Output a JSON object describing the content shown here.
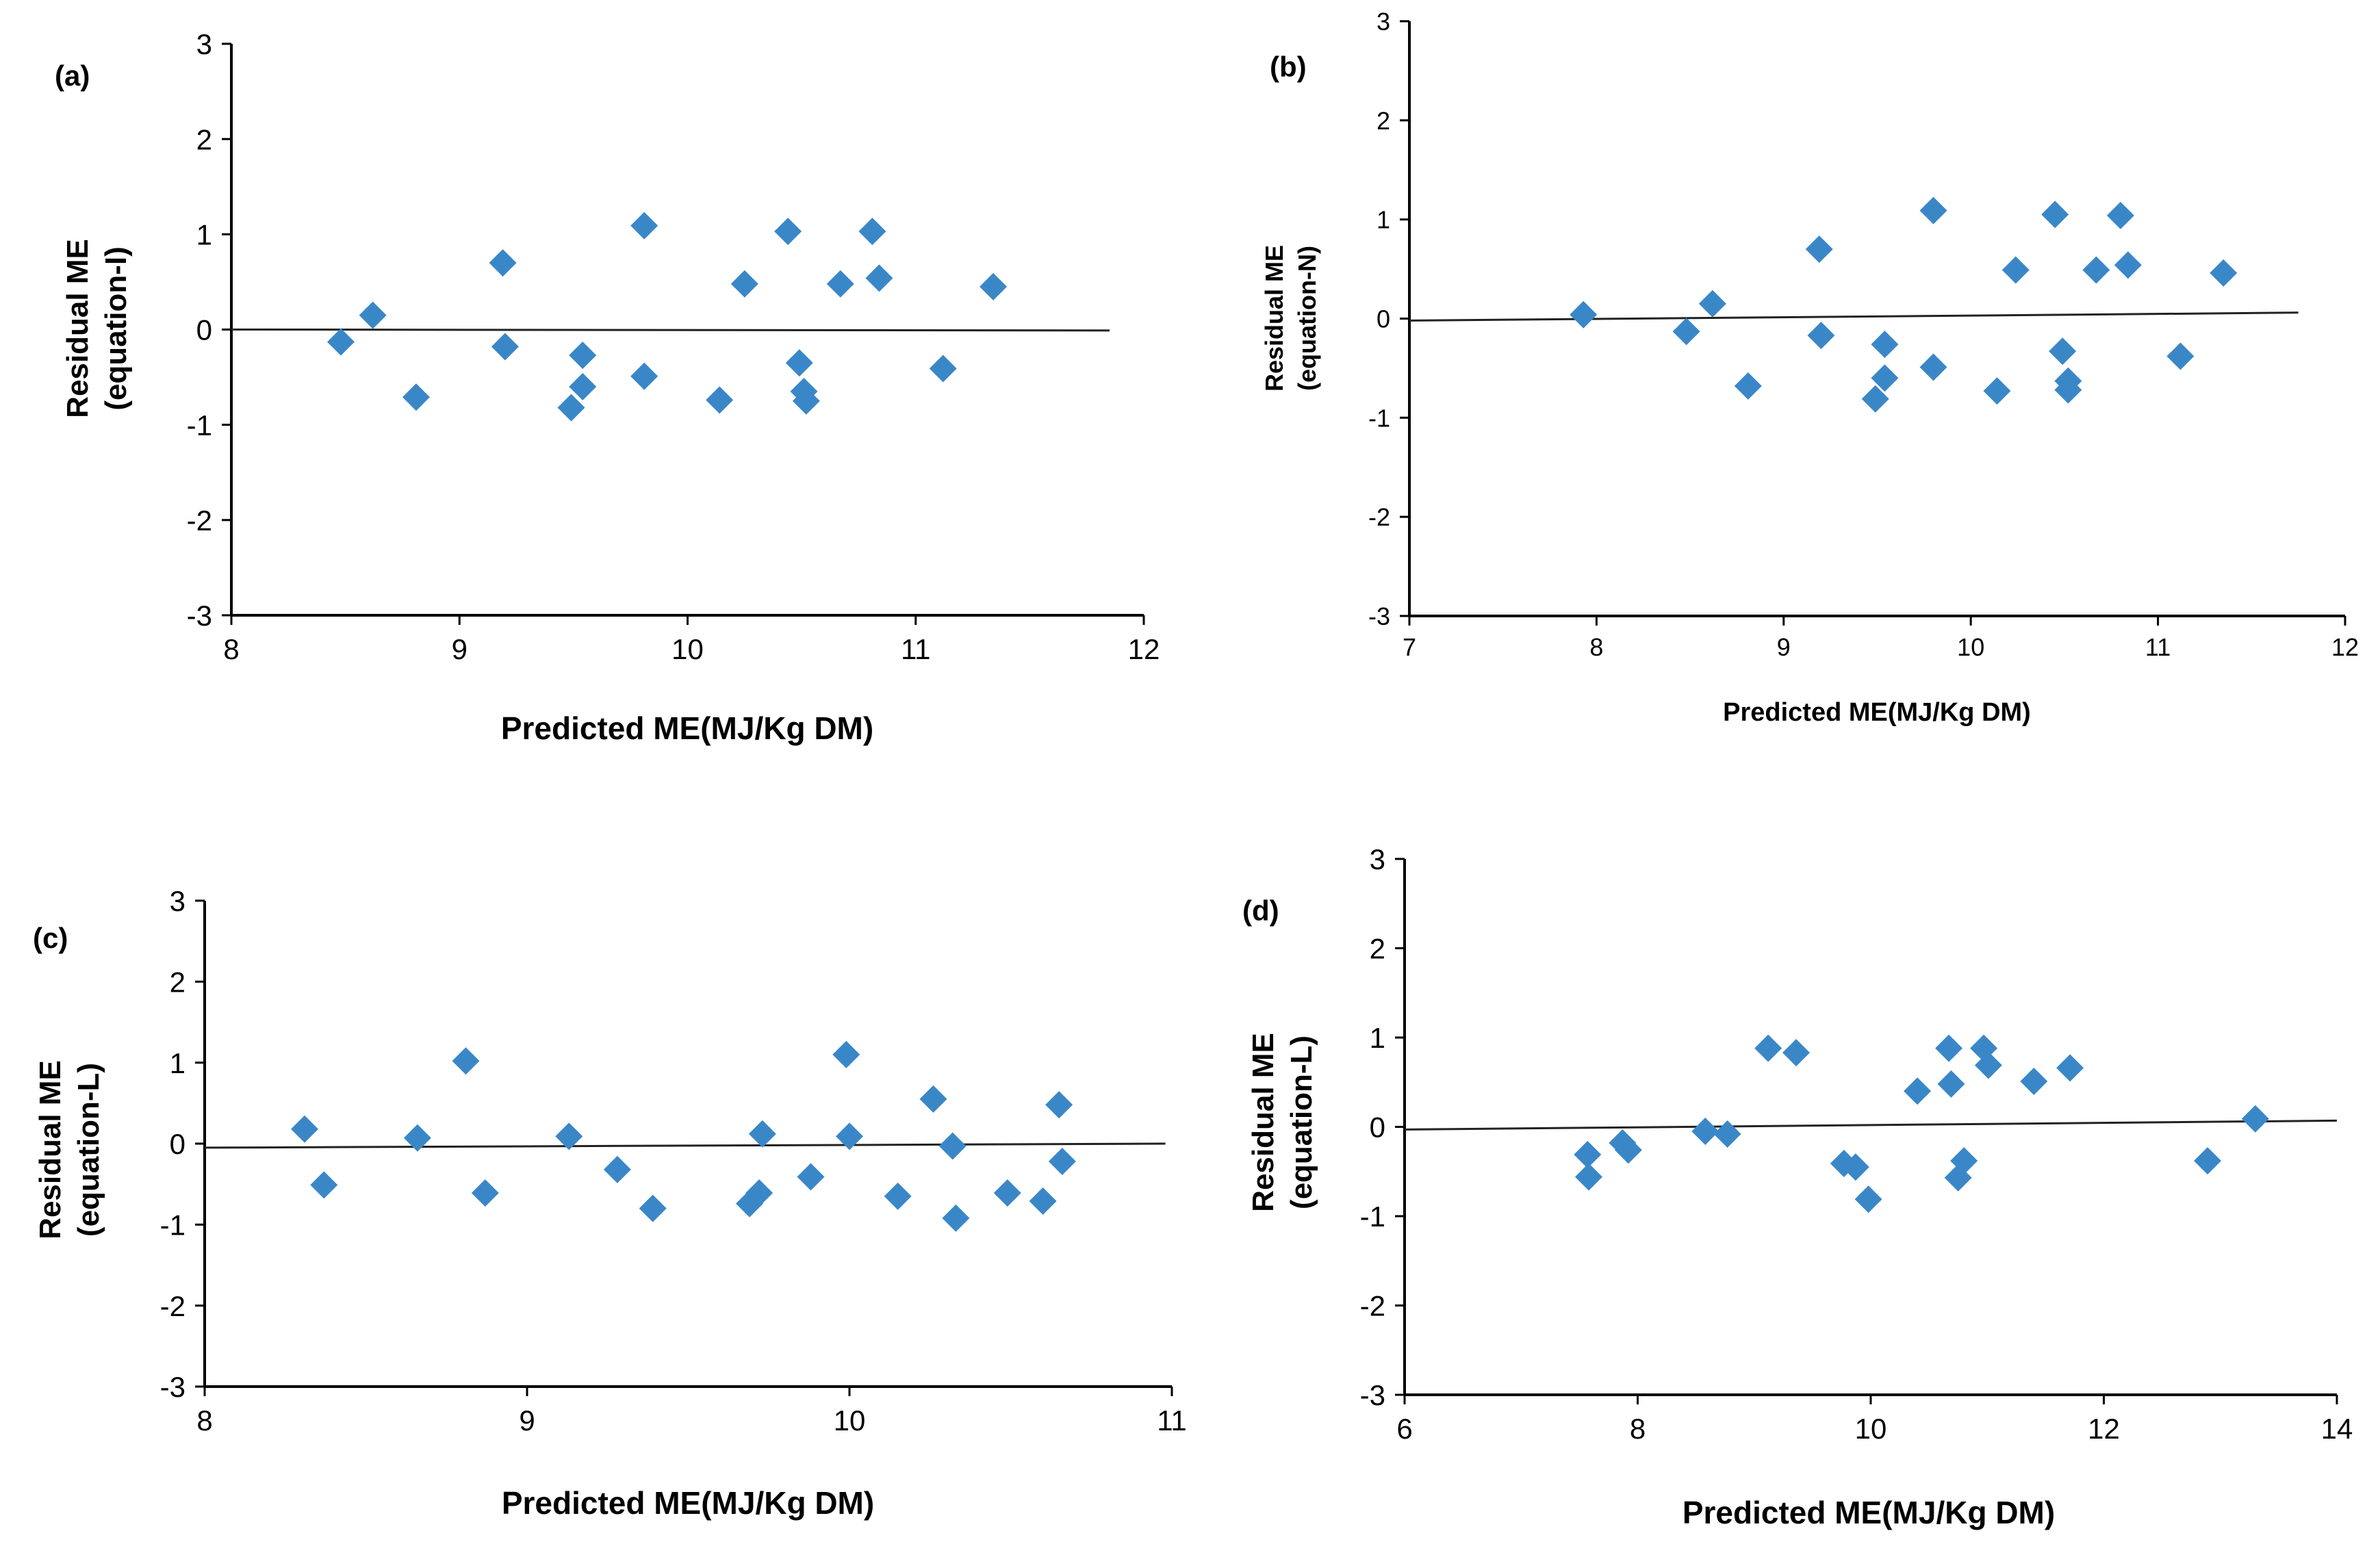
{
  "chart_data": [
    {
      "type": "scatter",
      "panel_label": "(a)",
      "xlabel": "Predicted ME(MJ/Kg DM)",
      "ylabel": [
        "Residual ME",
        "(equation-I)"
      ],
      "xlim": [
        8,
        12
      ],
      "ylim": [
        -3,
        3
      ],
      "xticks": [
        "8",
        "9",
        "10",
        "11",
        "12"
      ],
      "yticks": [
        "-3",
        "-2",
        "-1",
        "0",
        "1",
        "2",
        "3"
      ],
      "marker_color": "#3A87C8",
      "trendline": {
        "x": [
          8,
          11.85
        ],
        "y": [
          0.0,
          -0.01
        ]
      },
      "points": [
        {
          "x": 8.48,
          "y": -0.13
        },
        {
          "x": 8.62,
          "y": 0.15
        },
        {
          "x": 8.81,
          "y": -0.71
        },
        {
          "x": 9.19,
          "y": 0.7
        },
        {
          "x": 9.2,
          "y": -0.18
        },
        {
          "x": 9.49,
          "y": -0.82
        },
        {
          "x": 9.54,
          "y": -0.27
        },
        {
          "x": 9.54,
          "y": -0.6
        },
        {
          "x": 9.81,
          "y": 1.09
        },
        {
          "x": 9.81,
          "y": -0.49
        },
        {
          "x": 10.14,
          "y": -0.74
        },
        {
          "x": 10.25,
          "y": 0.48
        },
        {
          "x": 10.44,
          "y": 1.03
        },
        {
          "x": 10.49,
          "y": -0.35
        },
        {
          "x": 10.51,
          "y": -0.65
        },
        {
          "x": 10.52,
          "y": -0.75
        },
        {
          "x": 10.67,
          "y": 0.48
        },
        {
          "x": 10.81,
          "y": 1.03
        },
        {
          "x": 10.84,
          "y": 0.54
        },
        {
          "x": 11.12,
          "y": -0.41
        },
        {
          "x": 11.34,
          "y": 0.45
        }
      ]
    },
    {
      "type": "scatter",
      "panel_label": "(b)",
      "xlabel": "Predicted ME(MJ/Kg  DM)",
      "ylabel": [
        "Residual ME",
        "(equation-N)"
      ],
      "xlim": [
        7,
        12
      ],
      "ylim": [
        -3,
        3
      ],
      "xticks": [
        "7",
        "8",
        "9",
        "10",
        "11",
        "12"
      ],
      "yticks": [
        "-3",
        "-2",
        "-1",
        "0",
        "1",
        "2",
        "3"
      ],
      "marker_color": "#3A87C8",
      "trendline": {
        "x": [
          7,
          11.75
        ],
        "y": [
          -0.02,
          0.06
        ]
      },
      "points": [
        {
          "x": 7.93,
          "y": 0.04
        },
        {
          "x": 8.48,
          "y": -0.13
        },
        {
          "x": 8.62,
          "y": 0.15
        },
        {
          "x": 8.81,
          "y": -0.68
        },
        {
          "x": 9.19,
          "y": 0.7
        },
        {
          "x": 9.2,
          "y": -0.17
        },
        {
          "x": 9.49,
          "y": -0.81
        },
        {
          "x": 9.54,
          "y": -0.26
        },
        {
          "x": 9.54,
          "y": -0.6
        },
        {
          "x": 9.8,
          "y": 1.09
        },
        {
          "x": 9.8,
          "y": -0.49
        },
        {
          "x": 10.14,
          "y": -0.73
        },
        {
          "x": 10.24,
          "y": 0.49
        },
        {
          "x": 10.45,
          "y": 1.05
        },
        {
          "x": 10.49,
          "y": -0.33
        },
        {
          "x": 10.52,
          "y": -0.63
        },
        {
          "x": 10.52,
          "y": -0.72
        },
        {
          "x": 10.67,
          "y": 0.49
        },
        {
          "x": 10.8,
          "y": 1.04
        },
        {
          "x": 10.84,
          "y": 0.54
        },
        {
          "x": 11.12,
          "y": -0.38
        },
        {
          "x": 11.35,
          "y": 0.46
        }
      ]
    },
    {
      "type": "scatter",
      "panel_label": "(c)",
      "xlabel": "Predicted ME(MJ/Kg DM)",
      "ylabel": [
        "Residual ME",
        "(equation-L)"
      ],
      "xlim": [
        8,
        11
      ],
      "ylim": [
        -3,
        3
      ],
      "xticks": [
        "8",
        "9",
        "10",
        "11"
      ],
      "yticks": [
        "-3",
        "-2",
        "-1",
        "0",
        "1",
        "2",
        "3"
      ],
      "marker_color": "#3A87C8",
      "trendline": {
        "x": [
          8,
          10.98
        ],
        "y": [
          -0.05,
          0.0
        ]
      },
      "points": [
        {
          "x": 8.31,
          "y": 0.18
        },
        {
          "x": 8.37,
          "y": -0.51
        },
        {
          "x": 8.66,
          "y": 0.07
        },
        {
          "x": 8.81,
          "y": 1.02
        },
        {
          "x": 8.87,
          "y": -0.61
        },
        {
          "x": 9.13,
          "y": 0.09
        },
        {
          "x": 9.28,
          "y": -0.32
        },
        {
          "x": 9.39,
          "y": -0.8
        },
        {
          "x": 9.69,
          "y": -0.74
        },
        {
          "x": 9.72,
          "y": -0.61
        },
        {
          "x": 9.73,
          "y": 0.12
        },
        {
          "x": 9.88,
          "y": -0.41
        },
        {
          "x": 9.99,
          "y": 1.1
        },
        {
          "x": 10.0,
          "y": 0.09
        },
        {
          "x": 10.15,
          "y": -0.65
        },
        {
          "x": 10.26,
          "y": 0.55
        },
        {
          "x": 10.32,
          "y": -0.03
        },
        {
          "x": 10.33,
          "y": -0.92
        },
        {
          "x": 10.49,
          "y": -0.61
        },
        {
          "x": 10.6,
          "y": -0.71
        },
        {
          "x": 10.65,
          "y": 0.48
        },
        {
          "x": 10.66,
          "y": -0.22
        }
      ]
    },
    {
      "type": "scatter",
      "panel_label": "(d)",
      "xlabel": "Predicted ME(MJ/Kg DM)",
      "ylabel": [
        "Residual ME",
        "(equation-L)"
      ],
      "xlim": [
        6,
        14
      ],
      "ylim": [
        -3,
        3
      ],
      "xticks": [
        "6",
        "8",
        "10",
        "12",
        "14"
      ],
      "yticks": [
        "-3",
        "-2",
        "-1",
        "0",
        "1",
        "2",
        "3"
      ],
      "marker_color": "#3A87C8",
      "trendline": {
        "x": [
          6,
          14
        ],
        "y": [
          -0.03,
          0.07
        ]
      },
      "points": [
        {
          "x": 7.57,
          "y": -0.31
        },
        {
          "x": 7.58,
          "y": -0.56
        },
        {
          "x": 7.87,
          "y": -0.18
        },
        {
          "x": 7.92,
          "y": -0.26
        },
        {
          "x": 8.58,
          "y": -0.05
        },
        {
          "x": 8.77,
          "y": -0.08
        },
        {
          "x": 9.12,
          "y": 0.88
        },
        {
          "x": 9.36,
          "y": 0.83
        },
        {
          "x": 9.77,
          "y": -0.41
        },
        {
          "x": 9.87,
          "y": -0.45
        },
        {
          "x": 9.98,
          "y": -0.81
        },
        {
          "x": 10.4,
          "y": 0.4
        },
        {
          "x": 10.67,
          "y": 0.88
        },
        {
          "x": 10.69,
          "y": 0.48
        },
        {
          "x": 10.75,
          "y": -0.57
        },
        {
          "x": 10.8,
          "y": -0.38
        },
        {
          "x": 10.97,
          "y": 0.88
        },
        {
          "x": 11.01,
          "y": 0.69
        },
        {
          "x": 11.4,
          "y": 0.51
        },
        {
          "x": 11.71,
          "y": 0.66
        },
        {
          "x": 12.89,
          "y": -0.38
        },
        {
          "x": 13.3,
          "y": 0.09
        }
      ]
    }
  ]
}
